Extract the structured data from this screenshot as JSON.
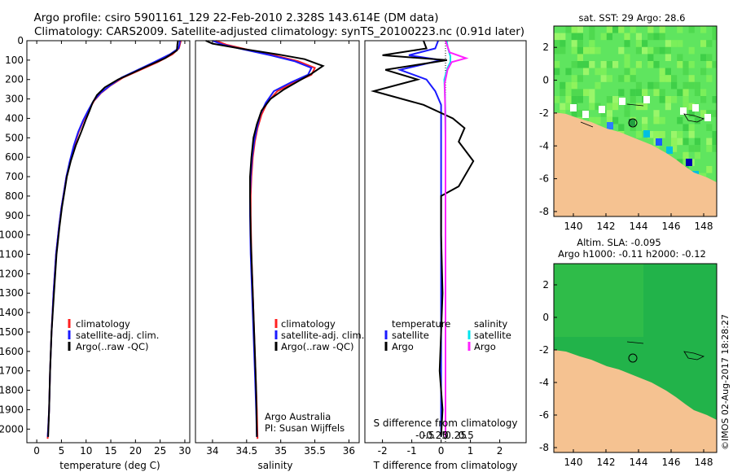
{
  "header": {
    "line1": "Argo profile: csiro 5901161_129 22-Feb-2010 2.328S 143.614E (DM data)",
    "line2": "Climatology: CARS2009. Satellite-adjusted climatology: synTS_20100223.nc (0.91d later)"
  },
  "colors": {
    "climatology": "#ff2020",
    "satellite": "#1a1aff",
    "argo": "#000000",
    "satellite_s": "#00e5ee",
    "argo_s": "#ff20ff",
    "land": "#f5c291",
    "ocean_sst": "#5fe55f",
    "ocean_sla": "#22b34a"
  },
  "credit": "©IMOS 02-Aug-2017 18:28:27",
  "chart_data": [
    {
      "type": "line",
      "name": "temperature-profile",
      "xlabel": "temperature (deg C)",
      "xlim": [
        -2,
        31
      ],
      "ylim": [
        2070,
        0
      ],
      "xticks": [
        0,
        5,
        10,
        15,
        20,
        25,
        30
      ],
      "yticks": [
        0,
        100,
        200,
        300,
        400,
        500,
        600,
        700,
        800,
        900,
        1000,
        1100,
        1200,
        1300,
        1400,
        1500,
        1600,
        1700,
        1800,
        1900,
        2000
      ],
      "legend": [
        "climatology",
        "satellite-adj. clim.",
        "Argo(..raw -QC)"
      ],
      "series": [
        {
          "name": "climatology",
          "color": "#ff2020",
          "x": [
            29.2,
            29.0,
            28.8,
            27.5,
            24.5,
            21.0,
            17.5,
            15.0,
            13.0,
            11.6,
            10.5,
            9.5,
            8.5,
            7.6,
            6.8,
            6.0,
            5.5,
            5.0,
            4.5,
            3.9,
            3.4,
            3.0,
            2.7,
            2.5,
            2.3,
            2.2
          ],
          "y": [
            0,
            20,
            40,
            70,
            110,
            150,
            190,
            230,
            270,
            310,
            360,
            410,
            470,
            540,
            620,
            700,
            780,
            860,
            960,
            1100,
            1300,
            1500,
            1700,
            1900,
            2000,
            2050
          ]
        },
        {
          "name": "satellite-adj. clim.",
          "color": "#1a1aff",
          "x": [
            29.0,
            28.9,
            28.7,
            27.0,
            23.8,
            20.5,
            17.2,
            14.9,
            12.9,
            11.5,
            10.4,
            9.4,
            8.4,
            7.5,
            6.7,
            6.0,
            5.5,
            5.0,
            4.5,
            3.9,
            3.4,
            3.0,
            2.7,
            2.5,
            2.3,
            2.2
          ],
          "y": [
            0,
            20,
            40,
            70,
            110,
            150,
            190,
            230,
            270,
            310,
            360,
            410,
            470,
            540,
            620,
            700,
            780,
            860,
            960,
            1100,
            1300,
            1500,
            1700,
            1900,
            2000,
            2040
          ]
        },
        {
          "name": "Argo(..raw -QC)",
          "color": "#000000",
          "x": [
            28.6,
            28.5,
            28.4,
            26.0,
            22.5,
            19.5,
            16.5,
            13.8,
            12.2,
            11.3,
            10.7,
            9.9,
            9.0,
            7.9,
            6.9,
            6.1,
            5.6,
            5.1,
            4.6,
            4.0,
            3.5,
            3.0,
            2.7,
            2.5,
            2.3
          ],
          "y": [
            0,
            20,
            50,
            90,
            130,
            165,
            200,
            240,
            280,
            320,
            360,
            410,
            470,
            540,
            620,
            700,
            780,
            860,
            960,
            1100,
            1300,
            1500,
            1700,
            1900,
            2040
          ]
        }
      ]
    },
    {
      "type": "line",
      "name": "salinity-profile",
      "xlabel": "salinity",
      "xlim": [
        33.75,
        36.15
      ],
      "ylim": [
        2070,
        0
      ],
      "xticks": [
        34,
        34.5,
        35,
        35.5,
        36
      ],
      "legend": [
        "climatology",
        "satellite-adj. clim.",
        "Argo(..raw -QC)"
      ],
      "annotation": [
        "Argo Australia",
        "PI: Susan Wijffels"
      ],
      "series": [
        {
          "name": "climatology",
          "color": "#ff2020",
          "x": [
            34.05,
            34.2,
            34.5,
            34.9,
            35.25,
            35.5,
            35.45,
            35.2,
            34.95,
            34.8,
            34.72,
            34.66,
            34.62,
            34.59,
            34.57,
            34.56,
            34.56,
            34.57,
            34.59,
            34.61,
            34.63,
            34.65,
            34.66
          ],
          "y": [
            0,
            20,
            45,
            75,
            105,
            140,
            175,
            215,
            260,
            320,
            380,
            450,
            520,
            600,
            700,
            800,
            900,
            1100,
            1300,
            1500,
            1700,
            1900,
            2050
          ]
        },
        {
          "name": "satellite-adj. clim.",
          "color": "#1a1aff",
          "x": [
            34.0,
            34.15,
            34.45,
            34.85,
            35.2,
            35.45,
            35.4,
            35.15,
            34.9,
            34.78,
            34.7,
            34.65,
            34.61,
            34.58,
            34.56,
            34.55,
            34.55,
            34.56,
            34.58,
            34.6,
            34.62,
            34.64,
            34.65
          ],
          "y": [
            0,
            20,
            45,
            75,
            105,
            140,
            175,
            215,
            260,
            320,
            380,
            450,
            520,
            600,
            700,
            800,
            900,
            1100,
            1300,
            1500,
            1700,
            1900,
            2040
          ]
        },
        {
          "name": "Argo(..raw -QC)",
          "color": "#000000",
          "x": [
            33.9,
            34.0,
            34.4,
            34.95,
            35.35,
            35.62,
            35.45,
            35.25,
            35.05,
            34.85,
            34.72,
            34.65,
            34.6,
            34.57,
            34.55,
            34.55,
            34.56,
            34.58,
            34.6,
            34.62,
            34.64,
            34.65
          ],
          "y": [
            0,
            15,
            40,
            70,
            95,
            130,
            170,
            210,
            250,
            300,
            360,
            430,
            500,
            600,
            700,
            800,
            1000,
            1200,
            1400,
            1600,
            1800,
            2040
          ]
        }
      ]
    },
    {
      "type": "line",
      "name": "difference-profile",
      "xlabel": "T difference from climatology",
      "xlabel_top": "S difference from climatology",
      "xlim_T": [
        -2.6,
        2.9
      ],
      "xticks_T": [
        -2,
        -1,
        0,
        1,
        2
      ],
      "xticks_S": [
        -0.5,
        -0.25,
        0,
        0.25,
        0.5
      ],
      "legend_T": [
        "temperature",
        "satellite",
        "Argo"
      ],
      "legend_S": [
        "salinity",
        "satellite",
        "Argo"
      ],
      "series": [
        {
          "name": "temperature satellite",
          "color": "#1a1aff",
          "x": [
            -0.1,
            -0.2,
            -1.1,
            0.0,
            -1.4,
            -0.5,
            -0.2,
            0.0,
            0.0,
            0.0,
            0.0
          ],
          "y": [
            0,
            40,
            75,
            100,
            150,
            200,
            260,
            330,
            450,
            900,
            2040
          ]
        },
        {
          "name": "temperature Argo",
          "color": "#000000",
          "x": [
            -0.6,
            -0.5,
            -2.0,
            0.2,
            -1.9,
            -0.8,
            -2.3,
            -0.6,
            0.4,
            0.8,
            0.6,
            1.1,
            0.6,
            0.0,
            0.0,
            0.05,
            0.0,
            -0.05,
            0.0,
            0.05,
            0.0
          ],
          "y": [
            0,
            40,
            75,
            100,
            150,
            200,
            260,
            330,
            400,
            450,
            520,
            620,
            750,
            800,
            1000,
            1300,
            1500,
            1700,
            1800,
            1900,
            2040
          ]
        },
        {
          "name": "salinity satellite",
          "color": "#00e5ee",
          "x_s": [
            0.03,
            0.06,
            0.12,
            0.12,
            0.05,
            -0.03,
            -0.01,
            0.0,
            0.0,
            0.0,
            0.0
          ],
          "y": [
            0,
            40,
            80,
            110,
            140,
            200,
            300,
            400,
            600,
            900,
            2040
          ]
        },
        {
          "name": "salinity Argo",
          "color": "#ff20ff",
          "x_s": [
            0.0,
            0.1,
            0.5,
            0.15,
            0.05,
            -0.02,
            -0.01,
            0.0,
            0.0,
            0.0
          ],
          "y": [
            0,
            60,
            90,
            110,
            150,
            220,
            330,
            500,
            900,
            2040
          ]
        }
      ]
    },
    {
      "type": "heatmap",
      "name": "sst-map",
      "title": "sat. SST: 29 Argo: 28.6",
      "xlim": [
        138.8,
        148.8
      ],
      "ylim": [
        -8.3,
        3.3
      ],
      "xticks": [
        140,
        142,
        144,
        146,
        148
      ],
      "yticks": [
        2,
        0,
        -2,
        -4,
        -6,
        -8
      ],
      "argo_position": [
        143.614,
        -2.328
      ]
    },
    {
      "type": "heatmap",
      "name": "sla-map",
      "title": [
        "Altim. SLA: -0.095",
        "Argo h1000: -0.11 h2000: -0.12"
      ],
      "xlim": [
        138.8,
        148.8
      ],
      "ylim": [
        -8.3,
        3.3
      ],
      "xticks": [
        140,
        142,
        144,
        146,
        148
      ],
      "yticks": [
        2,
        0,
        -2,
        -4,
        -6,
        -8
      ],
      "argo_position": [
        143.614,
        -2.328
      ]
    }
  ]
}
